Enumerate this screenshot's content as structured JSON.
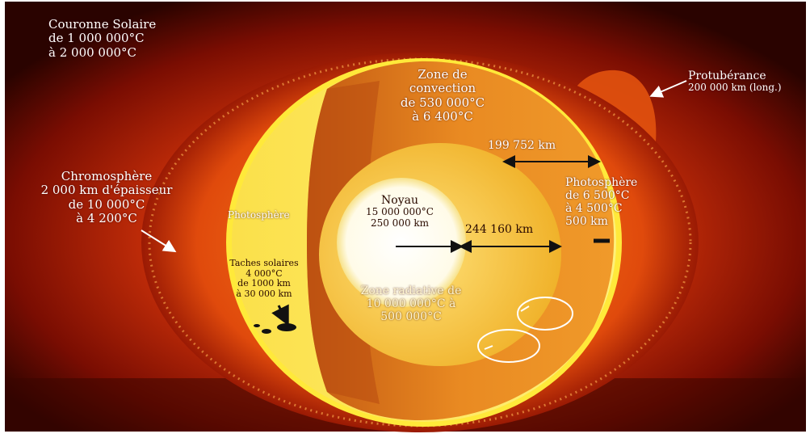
{
  "colors": {
    "background": "#1a0200",
    "corona": "#d23a08",
    "photosphere_surface": "#f6e46a",
    "convection_zone": "#e0781a",
    "radiative_zone": "#f2c033",
    "core": "#ffffff",
    "rim": "#ffef3a"
  },
  "labels": {
    "corona": {
      "line1": "Couronne Solaire",
      "line2": "de 1 000 000°C",
      "line3": "à 2 000 000°C"
    },
    "prominence": {
      "line1": "Protubérance",
      "line2": "200 000 km (long.)"
    },
    "convection": {
      "line1": "Zone de",
      "line2": "convection",
      "line3": "de 530 000°C",
      "line4": "à 6 400°C"
    },
    "convection_width": "199 752 km",
    "chromosphere": {
      "line1": "Chromosphère",
      "line2": "2 000 km d'épaisseur",
      "line3": "de 10 000°C",
      "line4": "à 4 200°C"
    },
    "photosphere_left": "Photosphère",
    "sunspots": {
      "line1": "Taches solaires",
      "line2": "4 000°C",
      "line3": "de 1000 km",
      "line4": "à 30 000 km"
    },
    "core": {
      "line1": "Noyau",
      "line2": "15 000 000°C",
      "line3": "250 000 km"
    },
    "radiative_width": "244 160 km",
    "radiative": {
      "line1": "Zone radiative de",
      "line2": "10 000 000°C à",
      "line3": "500 000°C"
    },
    "photosphere_right": {
      "line1": "Photosphère",
      "line2": "de 6 500°C",
      "line3": "à 4 500°C",
      "line4": "500 km"
    }
  }
}
